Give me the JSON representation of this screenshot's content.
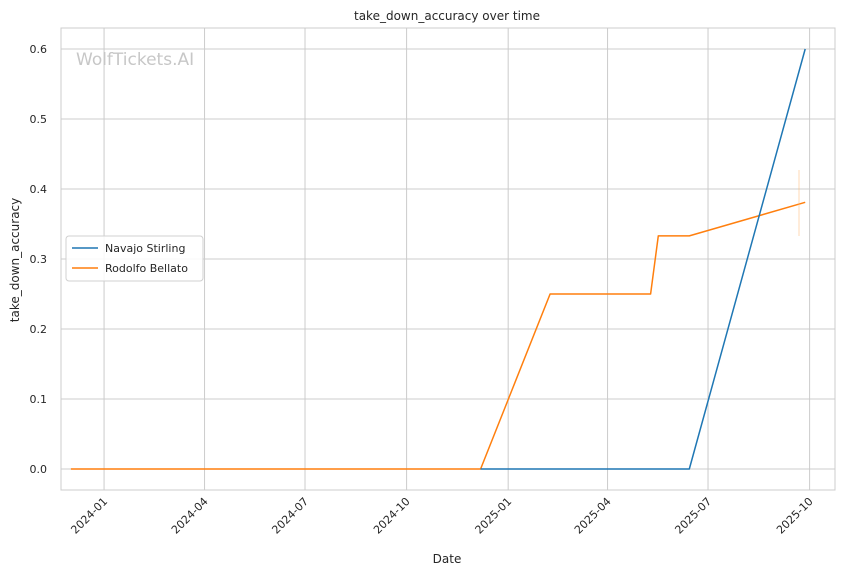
{
  "chart_data": {
    "type": "line",
    "title": "take_down_accuracy over time",
    "xlabel": "Date",
    "ylabel": "take_down_accuracy",
    "watermark": "WolfTickets.AI",
    "xlim": [
      "2023-11-23",
      "2025-10-24"
    ],
    "ylim": [
      -0.03,
      0.63
    ],
    "x_ticks": [
      {
        "date": "2024-01-01",
        "label": "2024-01"
      },
      {
        "date": "2024-04-01",
        "label": "2024-04"
      },
      {
        "date": "2024-07-01",
        "label": "2024-07"
      },
      {
        "date": "2024-10-01",
        "label": "2024-10"
      },
      {
        "date": "2025-01-01",
        "label": "2025-01"
      },
      {
        "date": "2025-04-01",
        "label": "2025-04"
      },
      {
        "date": "2025-07-01",
        "label": "2025-07"
      },
      {
        "date": "2025-10-01",
        "label": "2025-10"
      }
    ],
    "y_ticks": [
      0.0,
      0.1,
      0.2,
      0.3,
      0.4,
      0.5,
      0.6
    ],
    "y_tick_labels": [
      "0.0",
      "0.1",
      "0.2",
      "0.3",
      "0.4",
      "0.5",
      "0.6"
    ],
    "grid": true,
    "legend_position": "center-left",
    "series": [
      {
        "name": "Navajo Stirling",
        "color": "#1f77b4",
        "points": [
          {
            "x": "2024-12-07",
            "y": 0.0
          },
          {
            "x": "2025-06-14",
            "y": 0.0
          },
          {
            "x": "2025-09-27",
            "y": 0.6
          }
        ]
      },
      {
        "name": "Rodolfo Bellato",
        "color": "#ff7f0e",
        "points": [
          {
            "x": "2023-12-02",
            "y": 0.0
          },
          {
            "x": "2024-12-07",
            "y": 0.0
          },
          {
            "x": "2025-02-08",
            "y": 0.25
          },
          {
            "x": "2025-05-10",
            "y": 0.25
          },
          {
            "x": "2025-05-17",
            "y": 0.333
          },
          {
            "x": "2025-06-14",
            "y": 0.333
          },
          {
            "x": "2025-09-27",
            "y": 0.381
          }
        ]
      }
    ]
  }
}
